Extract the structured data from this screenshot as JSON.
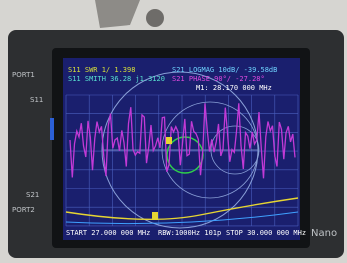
{
  "device": {
    "labels": [
      "PORT1",
      "S11",
      "S21",
      "PORT2"
    ],
    "brand": "Nano"
  },
  "screen": {
    "header": {
      "s11_swr": "S11 SWR 1/ 1.398",
      "s11_smith": "S11 SMITH 36.28 j1.3120",
      "s21_logmag": "S21 LOGMAG 10dB/ -39.58dB",
      "s21_phase": "S21 PHASE 90°/ -27.28°",
      "marker": "M1: 28.170 000 MHz"
    },
    "footer": {
      "start": "START 27.000 000 MHz",
      "rbw": "RBW:1000Hz 101p",
      "stop": "STOP 30.000 000 MHz"
    }
  }
}
